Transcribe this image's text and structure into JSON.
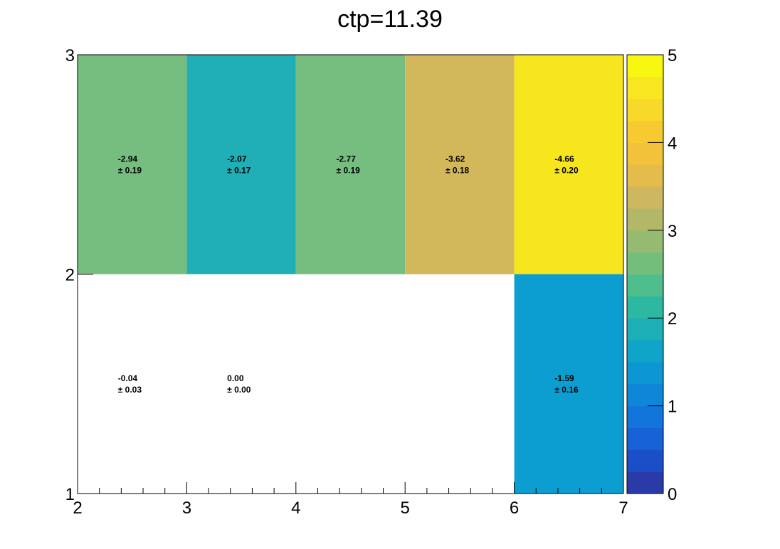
{
  "chart_data": {
    "type": "heatmap",
    "title": "ctp=11.39",
    "xlabel": "",
    "ylabel": "",
    "xlim": [
      2,
      7
    ],
    "ylim": [
      1,
      3
    ],
    "x_ticks": [
      "2",
      "3",
      "4",
      "5",
      "6",
      "7"
    ],
    "y_ticks": [
      "1",
      "2",
      "3"
    ],
    "colorbar": {
      "min": 0,
      "max": 5,
      "ticks": [
        "0",
        "1",
        "2",
        "3",
        "4",
        "5"
      ],
      "colors": [
        "#2a3aa8",
        "#1a4fc8",
        "#1762d6",
        "#1275dc",
        "#1086d8",
        "#0d97d2",
        "#0fa5c8",
        "#1cb0b6",
        "#2db9a1",
        "#4ebe8d",
        "#74be7c",
        "#94bb70",
        "#b2b868",
        "#cdb75f",
        "#e3bc4b",
        "#f2c23a",
        "#f8ca31",
        "#f8d92a",
        "#f8e620",
        "#f7f70f"
      ]
    },
    "cells": [
      {
        "x": [
          2,
          3
        ],
        "y": [
          2,
          3
        ],
        "value": 2.94,
        "label": "-2.94",
        "error": "± 0.19",
        "color": "#76bd80"
      },
      {
        "x": [
          3,
          4
        ],
        "y": [
          2,
          3
        ],
        "value": 2.07,
        "label": "-2.07",
        "error": "± 0.17",
        "color": "#20afb7"
      },
      {
        "x": [
          4,
          5
        ],
        "y": [
          2,
          3
        ],
        "value": 2.77,
        "label": "-2.77",
        "error": "± 0.19",
        "color": "#76bd80"
      },
      {
        "x": [
          5,
          6
        ],
        "y": [
          2,
          3
        ],
        "value": 3.62,
        "label": "-3.62",
        "error": "± 0.18",
        "color": "#d2b85b"
      },
      {
        "x": [
          6,
          7
        ],
        "y": [
          2,
          3
        ],
        "value": 4.66,
        "label": "-4.66",
        "error": "± 0.20",
        "color": "#f7e51e"
      },
      {
        "x": [
          2,
          3
        ],
        "y": [
          1,
          2
        ],
        "value": 0.04,
        "label": "-0.04",
        "error": "± 0.03",
        "color": null
      },
      {
        "x": [
          3,
          4
        ],
        "y": [
          1,
          2
        ],
        "value": 0.0,
        "label": "0.00",
        "error": "± 0.00",
        "color": null
      },
      {
        "x": [
          6,
          7
        ],
        "y": [
          1,
          2
        ],
        "value": 1.59,
        "label": "-1.59",
        "error": "± 0.16",
        "color": "#0c9ed0"
      }
    ]
  }
}
